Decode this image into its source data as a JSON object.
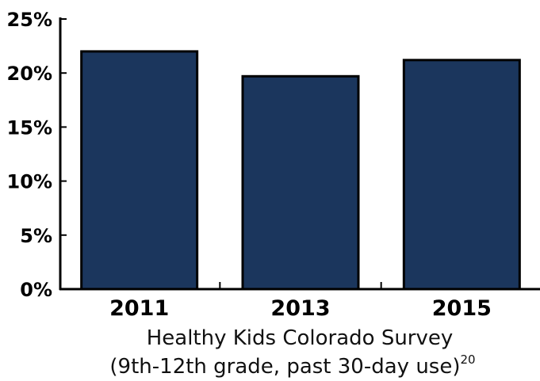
{
  "chart_data": {
    "type": "bar",
    "categories": [
      "2011",
      "2013",
      "2015"
    ],
    "values": [
      22.0,
      19.7,
      21.2
    ],
    "ylim": [
      0,
      25
    ],
    "yticks": [
      0,
      5,
      10,
      15,
      20,
      25
    ],
    "ytick_labels": [
      "0%",
      "5%",
      "10%",
      "15%",
      "20%",
      "25%"
    ],
    "xlabel_line1": "Healthy Kids Colorado Survey",
    "xlabel_line2": "(9th-12th grade, past 30-day use)",
    "xlabel_footnote": "20",
    "grid": false,
    "legend": "none",
    "bar_color": "#1b365d",
    "bar_edge_color": "#000000"
  }
}
